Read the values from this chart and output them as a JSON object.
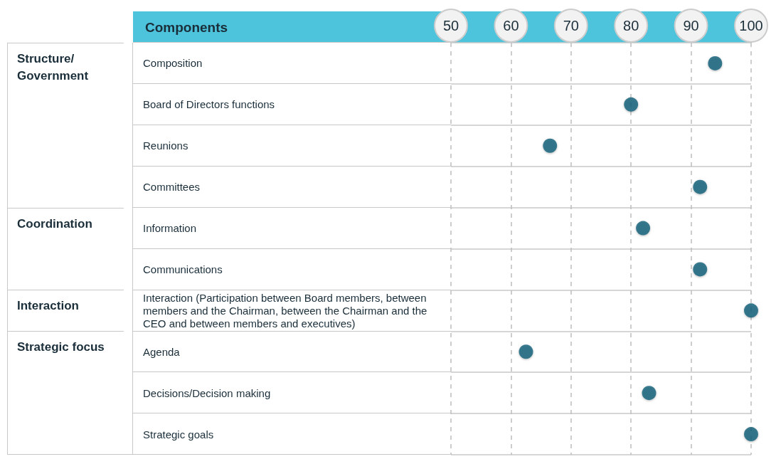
{
  "chart_data": {
    "type": "scatter",
    "ylabel": "Components",
    "categories": [
      "Composition",
      "Board of Directors functions",
      "Reunions",
      "Committees",
      "Information",
      "Communications",
      "Interaction (Participation between Board members, between members and the Chairman, between the Chairman and the CEO and between members and executives)",
      "Agenda",
      "Decisions/Decision making",
      "Strategic goals"
    ],
    "orientation": "horizontal",
    "values": [
      94,
      80,
      66.5,
      91.5,
      82,
      91.5,
      100,
      62.5,
      83,
      100
    ],
    "color": "#135f78",
    "xlim": [
      50,
      100
    ],
    "xticks": [
      50,
      60,
      70,
      80,
      90,
      100
    ],
    "grid": true,
    "marker": "circle",
    "annotations": [
      "Structure/Government",
      "Coordination",
      "Interaction",
      "Strategic focus"
    ]
  }
}
